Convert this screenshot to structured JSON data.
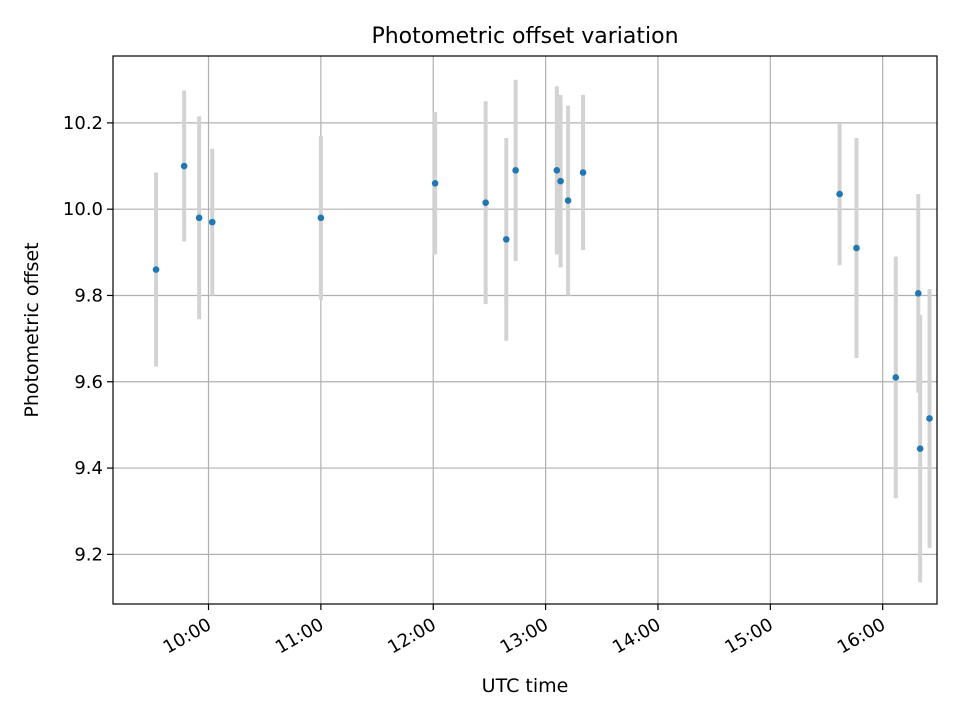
{
  "chart_data": {
    "type": "scatter",
    "title": "Photometric offset variation",
    "xlabel": "UTC time",
    "ylabel": "Photometric offset",
    "x_type": "time",
    "xlim": [
      "09:09",
      "16:29"
    ],
    "ylim": [
      9.085,
      10.355
    ],
    "x_ticks": [
      "10:00",
      "11:00",
      "12:00",
      "13:00",
      "14:00",
      "15:00",
      "16:00"
    ],
    "y_ticks": [
      9.2,
      9.4,
      9.6,
      9.8,
      10.0,
      10.2
    ],
    "grid": true,
    "legend": "none",
    "series": [
      {
        "marker_color": "#1f77b4",
        "errorbar_color": "#d3d3d3",
        "points": [
          {
            "x": "09:32",
            "y": 9.86,
            "err": 0.225
          },
          {
            "x": "09:47",
            "y": 10.1,
            "err": 0.175
          },
          {
            "x": "09:55",
            "y": 9.98,
            "err": 0.235
          },
          {
            "x": "10:02",
            "y": 9.97,
            "err": 0.17
          },
          {
            "x": "11:00",
            "y": 9.98,
            "err": 0.19
          },
          {
            "x": "12:01",
            "y": 10.06,
            "err": 0.165
          },
          {
            "x": "12:28",
            "y": 10.015,
            "err": 0.235
          },
          {
            "x": "12:39",
            "y": 9.93,
            "err": 0.235
          },
          {
            "x": "12:44",
            "y": 10.09,
            "err": 0.21
          },
          {
            "x": "13:06",
            "y": 10.09,
            "err": 0.195
          },
          {
            "x": "13:08",
            "y": 10.065,
            "err": 0.2
          },
          {
            "x": "13:12",
            "y": 10.02,
            "err": 0.22
          },
          {
            "x": "13:20",
            "y": 10.085,
            "err": 0.18
          },
          {
            "x": "15:37",
            "y": 10.035,
            "err": 0.165
          },
          {
            "x": "15:46",
            "y": 9.91,
            "err": 0.255
          },
          {
            "x": "16:07",
            "y": 9.61,
            "err": 0.28
          },
          {
            "x": "16:19",
            "y": 9.805,
            "err": 0.23
          },
          {
            "x": "16:20",
            "y": 9.445,
            "err": 0.31
          },
          {
            "x": "16:25",
            "y": 9.515,
            "err": 0.3
          }
        ]
      }
    ]
  }
}
